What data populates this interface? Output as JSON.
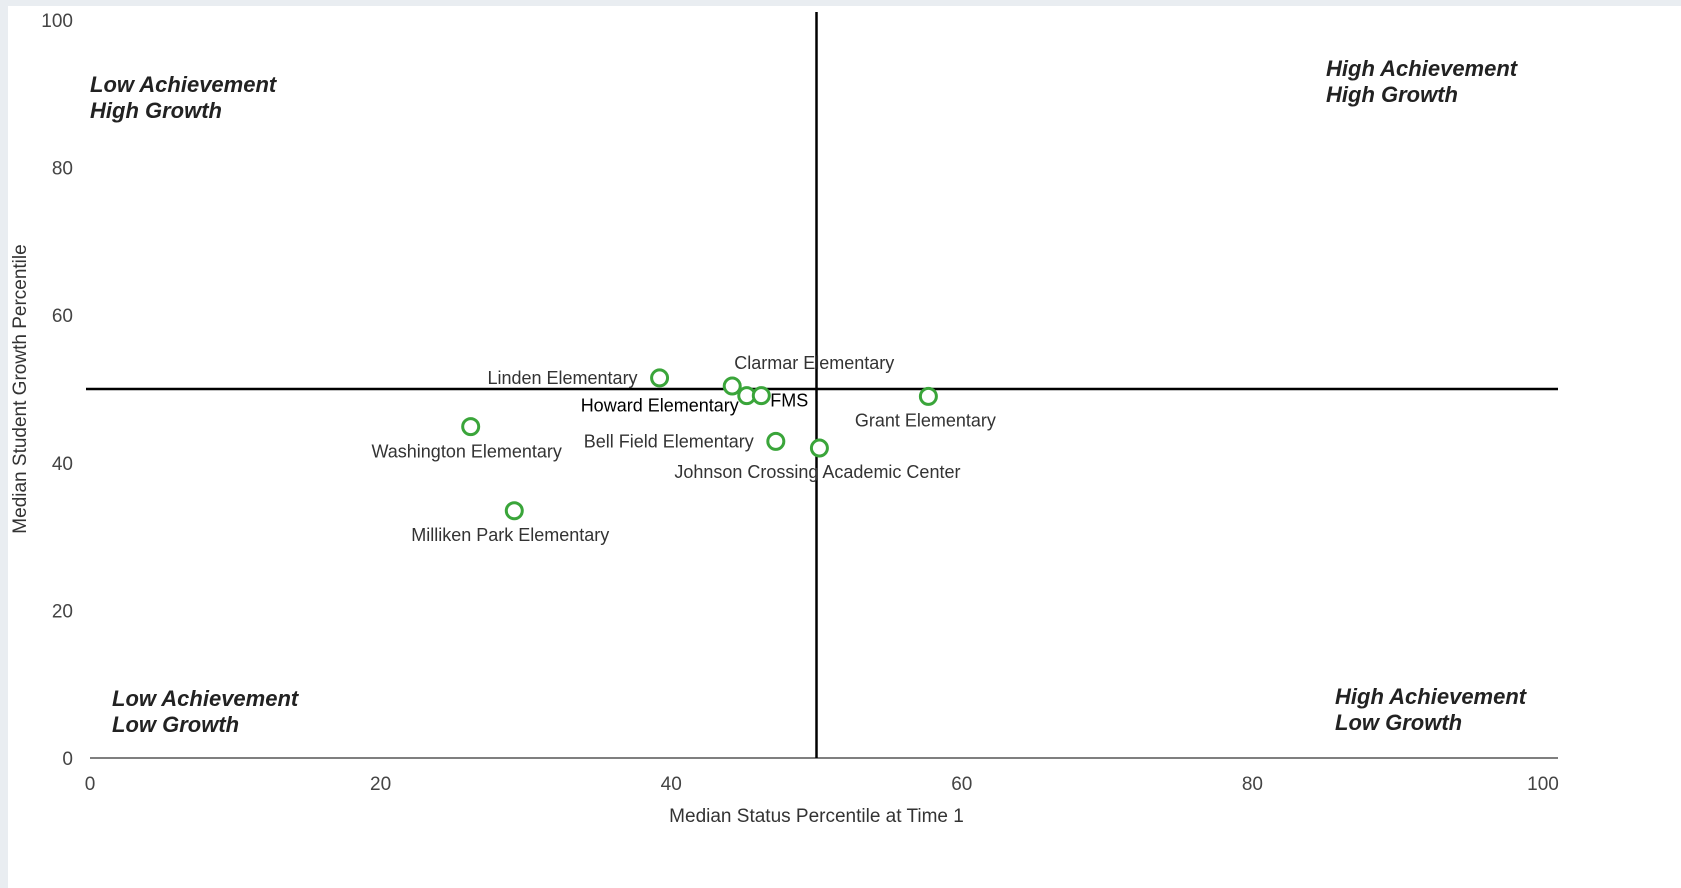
{
  "chart_data": {
    "type": "scatter",
    "xlabel": "Median Status Percentile at Time 1",
    "ylabel": "Median Student Growth Percentile",
    "xlim": [
      0,
      100
    ],
    "ylim": [
      0,
      100
    ],
    "x_ticks": [
      0,
      20,
      40,
      60,
      80,
      100
    ],
    "y_ticks": [
      0,
      20,
      40,
      60,
      80,
      100
    ],
    "x_tick_labels": [
      "0",
      "20",
      "40",
      "60",
      "80",
      "100"
    ],
    "y_tick_labels": [
      "0",
      "20",
      "40",
      "60",
      "80",
      "100"
    ],
    "grid": false,
    "marker_color": "#3aa53a",
    "reference_lines": {
      "x": 50,
      "y": 50,
      "color": "#000000"
    },
    "points": [
      {
        "name": "Linden Elementary",
        "x": 39.2,
        "y": 51.5
      },
      {
        "name": "Clarmar Elementary",
        "x": 44.2,
        "y": 50.4
      },
      {
        "name": "Howard Elementary",
        "x": 45.2,
        "y": 49.1
      },
      {
        "name": "FMS",
        "x": 46.2,
        "y": 49.1
      },
      {
        "name": "Grant Elementary",
        "x": 57.7,
        "y": 49.0
      },
      {
        "name": "Washington Elementary",
        "x": 26.2,
        "y": 44.9
      },
      {
        "name": "Bell Field Elementary",
        "x": 47.2,
        "y": 42.9
      },
      {
        "name": "Johnson Crossing Academic Center",
        "x": 50.2,
        "y": 42.0
      },
      {
        "name": "Milliken Park Elementary",
        "x": 29.2,
        "y": 33.5
      }
    ],
    "quadrant_labels": {
      "top_left": [
        "Low Achievement",
        "High Growth"
      ],
      "top_right": [
        "High Achievement",
        "High Growth"
      ],
      "bottom_left": [
        "Low Achievement",
        "Low Growth"
      ],
      "bottom_right": [
        "High Achievement",
        "Low Growth"
      ]
    }
  }
}
